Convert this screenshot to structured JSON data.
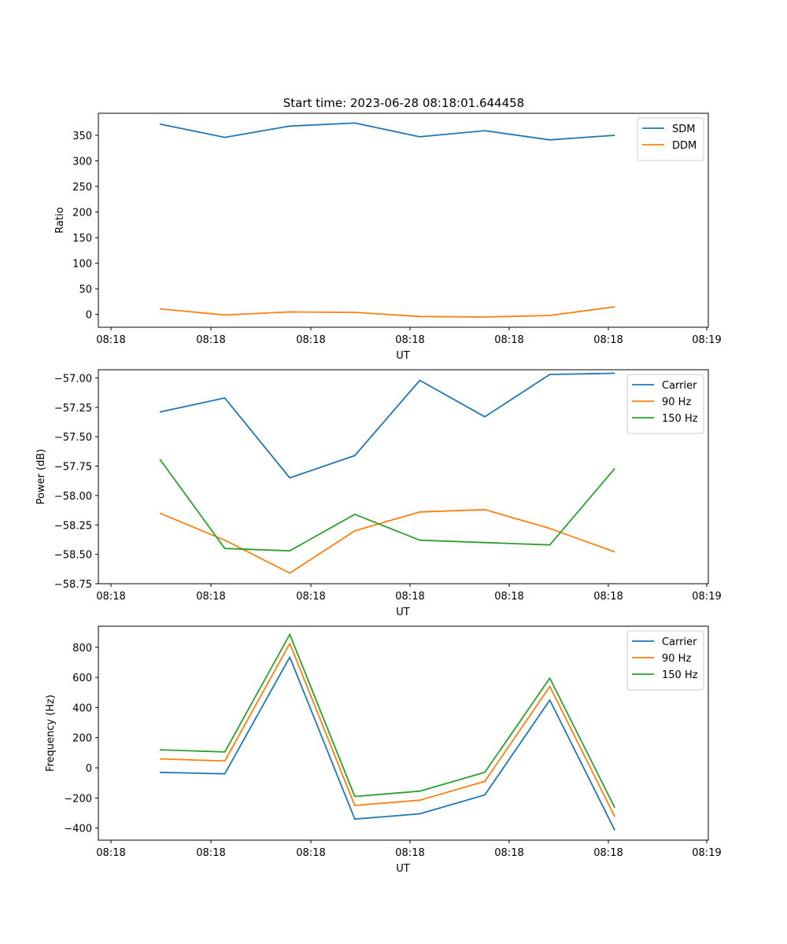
{
  "title": "Start time: 2023-06-28 08:18:01.644458",
  "chart_data": [
    {
      "type": "line",
      "xlabel": "UT",
      "ylabel": "Ratio",
      "x_tick_labels": [
        "08:18",
        "08:18",
        "08:18",
        "08:18",
        "08:18",
        "08:18",
        "08:19"
      ],
      "x_points": 8,
      "y_ticks": [
        0,
        50,
        100,
        150,
        200,
        250,
        300,
        350
      ],
      "ylim": [
        -25,
        393
      ],
      "legend_position": "upper right",
      "series": [
        {
          "name": "SDM",
          "color": "#1f77b4",
          "values": [
            372,
            346,
            368,
            374,
            347,
            359,
            341,
            350
          ]
        },
        {
          "name": "DDM",
          "color": "#ff7f0e",
          "values": [
            11,
            -1,
            5,
            4,
            -4,
            -5,
            -2,
            15
          ]
        }
      ]
    },
    {
      "type": "line",
      "xlabel": "UT",
      "ylabel": "Power (dB)",
      "x_tick_labels": [
        "08:18",
        "08:18",
        "08:18",
        "08:18",
        "08:18",
        "08:18",
        "08:19"
      ],
      "x_points": 8,
      "y_ticks": [
        -58.75,
        -58.5,
        -58.25,
        -58.0,
        -57.75,
        -57.5,
        -57.25,
        -57.0
      ],
      "y_tick_labels": [
        "−58.75",
        "−58.50",
        "−58.25",
        "−58.00",
        "−57.75",
        "−57.50",
        "−57.25",
        "−57.00"
      ],
      "ylim": [
        -58.75,
        -56.93
      ],
      "legend_position": "upper right",
      "series": [
        {
          "name": "Carrier",
          "color": "#1f77b4",
          "values": [
            -57.29,
            -57.17,
            -57.85,
            -57.66,
            -57.02,
            -57.33,
            -56.97,
            -56.96
          ]
        },
        {
          "name": "90 Hz",
          "color": "#ff7f0e",
          "values": [
            -58.15,
            -58.38,
            -58.66,
            -58.3,
            -58.14,
            -58.12,
            -58.28,
            -58.48
          ]
        },
        {
          "name": "150 Hz",
          "color": "#2ca02c",
          "values": [
            -57.69,
            -58.45,
            -58.47,
            -58.16,
            -58.38,
            -58.4,
            -58.42,
            -57.77
          ]
        }
      ]
    },
    {
      "type": "line",
      "xlabel": "UT",
      "ylabel": "Frequency (Hz)",
      "x_tick_labels": [
        "08:18",
        "08:18",
        "08:18",
        "08:18",
        "08:18",
        "08:18",
        "08:19"
      ],
      "x_points": 8,
      "y_ticks": [
        -400,
        -200,
        0,
        200,
        400,
        600,
        800
      ],
      "y_tick_labels": [
        "−400",
        "−200",
        "0",
        "200",
        "400",
        "600",
        "800"
      ],
      "ylim": [
        -480,
        940
      ],
      "legend_position": "upper right",
      "series": [
        {
          "name": "Carrier",
          "color": "#1f77b4",
          "values": [
            -30,
            -40,
            735,
            -340,
            -305,
            -180,
            450,
            -415
          ]
        },
        {
          "name": "90 Hz",
          "color": "#ff7f0e",
          "values": [
            60,
            45,
            825,
            -250,
            -215,
            -90,
            540,
            -325
          ]
        },
        {
          "name": "150 Hz",
          "color": "#2ca02c",
          "values": [
            120,
            105,
            885,
            -190,
            -155,
            -30,
            595,
            -265
          ]
        }
      ]
    }
  ]
}
